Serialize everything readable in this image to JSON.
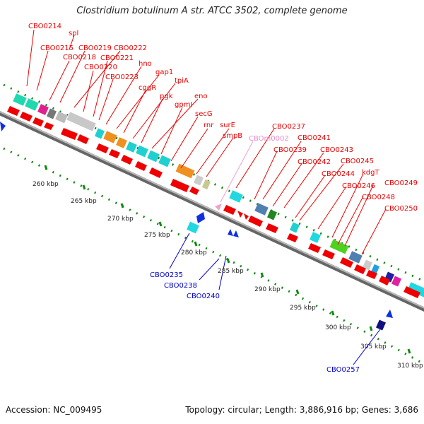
{
  "title": "Clostridium botulinum A str. ATCC 3502, complete genome",
  "footer": {
    "accession": "Accession: NC_009495",
    "summary": "Topology: circular; Length: 3,886,916 bp; Genes: 3,686"
  },
  "colors": {
    "label_red": "#ee0000",
    "label_blue": "#0000cc",
    "label_pink": "#ee88cc",
    "backbone": "#888888",
    "tick": "#118811"
  },
  "kbp_ticks": [
    "260 kbp",
    "265 kbp",
    "270 kbp",
    "275 kbp",
    "280 kbp",
    "285 kbp",
    "290 kbp",
    "295 kbp",
    "300 kbp",
    "305 kbp",
    "310 kbp"
  ],
  "gene_labels": [
    {
      "text": "CBO0214",
      "color": "red"
    },
    {
      "text": "spl",
      "color": "red"
    },
    {
      "text": "CBO0215",
      "color": "red"
    },
    {
      "text": "CBO0218",
      "color": "red"
    },
    {
      "text": "CBO0219",
      "color": "red"
    },
    {
      "text": "CBO0222",
      "color": "red"
    },
    {
      "text": "CBO0220",
      "color": "red"
    },
    {
      "text": "CBO0221",
      "color": "red"
    },
    {
      "text": "CBO0223",
      "color": "red"
    },
    {
      "text": "hno",
      "color": "red"
    },
    {
      "text": "gap1",
      "color": "red"
    },
    {
      "text": "cggR",
      "color": "red"
    },
    {
      "text": "tpiA",
      "color": "red"
    },
    {
      "text": "pgk",
      "color": "red"
    },
    {
      "text": "eno",
      "color": "red"
    },
    {
      "text": "gpmI",
      "color": "red"
    },
    {
      "text": "secG",
      "color": "red"
    },
    {
      "text": "rnr",
      "color": "red"
    },
    {
      "text": "surE",
      "color": "red"
    },
    {
      "text": "smpB",
      "color": "red"
    },
    {
      "text": "CBOm0002",
      "color": "pink"
    },
    {
      "text": "CBO0237",
      "color": "red"
    },
    {
      "text": "CBO0241",
      "color": "red"
    },
    {
      "text": "CBO0239",
      "color": "red"
    },
    {
      "text": "CBO0243",
      "color": "red"
    },
    {
      "text": "CBO0242",
      "color": "red"
    },
    {
      "text": "CBO0245",
      "color": "red"
    },
    {
      "text": "CBO0244",
      "color": "red"
    },
    {
      "text": "kdgT",
      "color": "red"
    },
    {
      "text": "CBO0246",
      "color": "red"
    },
    {
      "text": "CBO0249",
      "color": "red"
    },
    {
      "text": "CBO0248",
      "color": "red"
    },
    {
      "text": "CBO0250",
      "color": "red"
    },
    {
      "text": "CBO0235",
      "color": "blue"
    },
    {
      "text": "CBO0238",
      "color": "blue"
    },
    {
      "text": "CBO0240",
      "color": "blue"
    },
    {
      "text": "CBO0257",
      "color": "blue"
    }
  ]
}
